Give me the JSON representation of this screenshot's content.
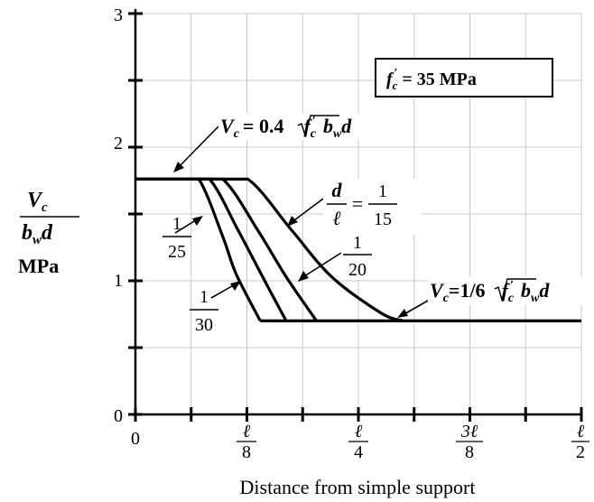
{
  "chart_data": {
    "type": "line",
    "title": "",
    "xlabel": "Distance from simple support",
    "ylabel": {
      "numerator": "V",
      "numerator_sub": "c",
      "denominator": "b",
      "denominator_sub": "w",
      "denominator_tail": "d",
      "unit": "MPa"
    },
    "xlim": [
      0,
      0.5
    ],
    "ylim": [
      0,
      3
    ],
    "grid": true,
    "x_ticks": [
      {
        "value": 0,
        "label": "0"
      },
      {
        "value": 0.125,
        "num": "ℓ",
        "den": "8"
      },
      {
        "value": 0.25,
        "num": "ℓ",
        "den": "4"
      },
      {
        "value": 0.375,
        "num": "3ℓ",
        "den": "8"
      },
      {
        "value": 0.5,
        "num": "ℓ",
        "den": "2"
      }
    ],
    "y_ticks": [
      {
        "value": 0,
        "label": "0"
      },
      {
        "value": 1,
        "label": "1"
      },
      {
        "value": 2,
        "label": "2"
      },
      {
        "value": 3,
        "label": "3"
      }
    ],
    "series": [
      {
        "x": [
          0,
          0.071,
          0.098,
          0.113,
          0.14
        ],
        "y": [
          1.761,
          1.761,
          1.33,
          1.05,
          0.7
        ]
      },
      {
        "x": [
          0,
          0.083,
          0.115,
          0.141,
          0.169
        ],
        "y": [
          1.761,
          1.761,
          1.38,
          1.05,
          0.7
        ]
      },
      {
        "x": [
          0,
          0.098,
          0.138,
          0.168,
          0.203
        ],
        "y": [
          1.761,
          1.761,
          1.37,
          1.04,
          0.7
        ]
      },
      {
        "x": [
          0,
          0.126,
          0.175,
          0.22,
          0.275,
          0.3
        ],
        "y": [
          1.761,
          1.761,
          1.38,
          1.03,
          0.76,
          0.7
        ]
      },
      {
        "x": [
          0.14,
          0.5
        ],
        "y": [
          0.7,
          0.7
        ]
      }
    ],
    "annotations": {
      "fc_box": {
        "f": "f",
        "sub": "c",
        "prime": "′",
        "text": " = 35 MPa"
      },
      "upper_formula": {
        "lhs": "V",
        "lhs_sub": "c",
        "eq": "= 0.4",
        "f": "f",
        "f_sub": "c",
        "prime": "′",
        "b": "b",
        "b_sub": "w",
        "tail": "d"
      },
      "lower_formula": {
        "lhs": "V",
        "lhs_sub": "c",
        "eq": "=1/6",
        "f": "f",
        "f_sub": "c",
        "prime": "′",
        "b": "b",
        "b_sub": "w",
        "tail": "d"
      },
      "ratio_15": {
        "lhs_num": "d",
        "lhs_den": "ℓ",
        "eq": "=",
        "num": "1",
        "den": "15"
      },
      "ratio_20": {
        "num": "1",
        "den": "20"
      },
      "ratio_25": {
        "num": "1",
        "den": "25"
      },
      "ratio_30": {
        "num": "1",
        "den": "30"
      }
    }
  }
}
